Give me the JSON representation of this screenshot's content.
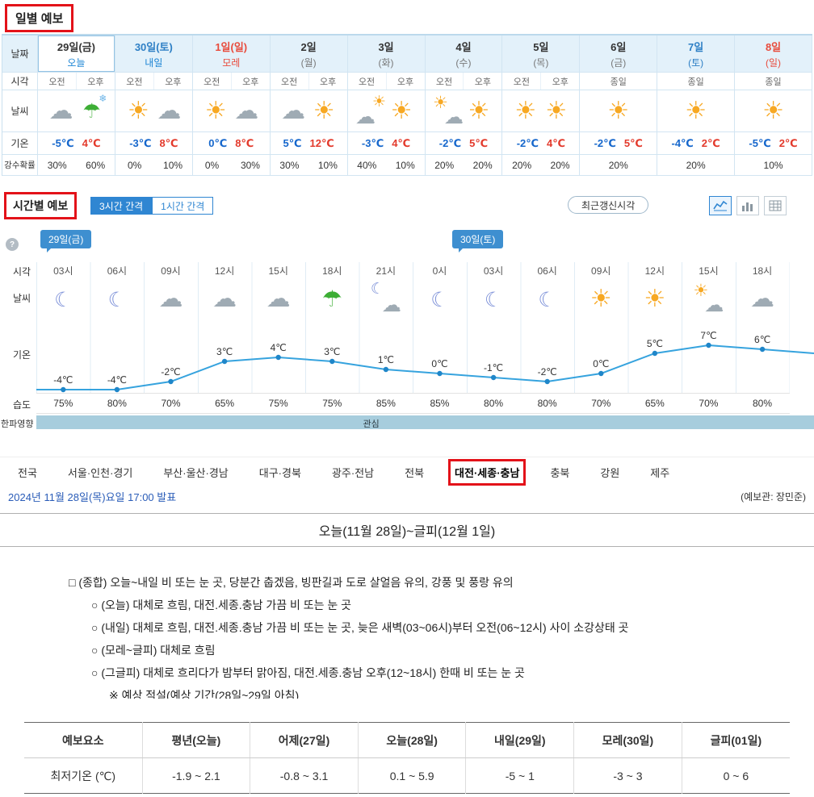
{
  "colors": {
    "annotation_red": "#e31219",
    "accent_blue": "#2f86d2",
    "temp_line_blue": "#36a3de",
    "min_temp_blue": "#1667cc",
    "max_temp_red": "#e33a2c",
    "cold_wave_bar": "#a7cddd"
  },
  "daily": {
    "section_title": "일별 예보",
    "row_labels": [
      "날짜",
      "시각",
      "날씨",
      "기온",
      "강수확률"
    ],
    "am_label": "오전",
    "pm_label": "오후",
    "allday_label": "종일",
    "days": [
      {
        "date": "29일(금)",
        "sub": "오늘",
        "date_style": "weekday",
        "sub_style": "today",
        "selected": true,
        "period": "ampm",
        "icons": [
          "cloud",
          "rain-snow"
        ],
        "temps": [
          "-5℃",
          "4℃"
        ],
        "pops": [
          "30%",
          "60%"
        ]
      },
      {
        "date": "30일(토)",
        "sub": "내일",
        "date_style": "sat",
        "sub_style": "today",
        "selected": false,
        "period": "ampm",
        "icons": [
          "sun",
          "cloud"
        ],
        "temps": [
          "-3℃",
          "8℃"
        ],
        "pops": [
          "0%",
          "10%"
        ]
      },
      {
        "date": "1일(일)",
        "sub": "모레",
        "date_style": "sun",
        "sub_style": "sun",
        "selected": false,
        "period": "ampm",
        "icons": [
          "sun",
          "cloud"
        ],
        "temps": [
          "0℃",
          "8℃"
        ],
        "pops": [
          "0%",
          "30%"
        ]
      },
      {
        "date": "2일",
        "sub": "(월)",
        "date_style": "weekday",
        "sub_style": "gray",
        "selected": false,
        "period": "ampm",
        "icons": [
          "cloud",
          "sun"
        ],
        "temps": [
          "5℃",
          "12℃"
        ],
        "pops": [
          "30%",
          "10%"
        ]
      },
      {
        "date": "3일",
        "sub": "(화)",
        "date_style": "weekday",
        "sub_style": "gray",
        "selected": false,
        "period": "ampm",
        "icons": [
          "cloud-sun",
          "sun"
        ],
        "temps": [
          "-3℃",
          "4℃"
        ],
        "pops": [
          "40%",
          "10%"
        ]
      },
      {
        "date": "4일",
        "sub": "(수)",
        "date_style": "weekday",
        "sub_style": "gray",
        "selected": false,
        "period": "ampm",
        "icons": [
          "sun-cloud",
          "sun"
        ],
        "temps": [
          "-2℃",
          "5℃"
        ],
        "pops": [
          "20%",
          "20%"
        ]
      },
      {
        "date": "5일",
        "sub": "(목)",
        "date_style": "weekday",
        "sub_style": "gray",
        "selected": false,
        "period": "ampm",
        "icons": [
          "sun",
          "sun"
        ],
        "temps": [
          "-2℃",
          "4℃"
        ],
        "pops": [
          "20%",
          "20%"
        ]
      },
      {
        "date": "6일",
        "sub": "(금)",
        "date_style": "weekday",
        "sub_style": "gray",
        "selected": false,
        "period": "allday",
        "icons": [
          "sun"
        ],
        "temps": [
          "-2℃",
          "5℃"
        ],
        "pops": [
          "20%"
        ]
      },
      {
        "date": "7일",
        "sub": "(토)",
        "date_style": "sat",
        "sub_style": "sat",
        "selected": false,
        "period": "allday",
        "icons": [
          "sun"
        ],
        "temps": [
          "-4℃",
          "2℃"
        ],
        "pops": [
          "20%"
        ]
      },
      {
        "date": "8일",
        "sub": "(일)",
        "date_style": "sun",
        "sub_style": "sun",
        "selected": false,
        "period": "allday",
        "icons": [
          "sun"
        ],
        "temps": [
          "-5℃",
          "2℃"
        ],
        "pops": [
          "10%"
        ]
      }
    ]
  },
  "hourly": {
    "section_title": "시간별 예보",
    "interval_buttons": [
      {
        "label": "3시간 간격",
        "active": true
      },
      {
        "label": "1시간 간격",
        "active": false
      }
    ],
    "update_button": "최근갱신시각",
    "view_icons": [
      "line-chart-view-icon",
      "bar-chart-view-icon",
      "table-view-icon"
    ],
    "help_icon": "?",
    "day_badges": [
      {
        "label": "29일(금)"
      },
      {
        "label": "30일(토)"
      }
    ],
    "row_labels": {
      "time": "시각",
      "weather": "날씨",
      "temp": "기온",
      "humidity": "습도",
      "coldwave": "한파영향"
    },
    "cold_wave_label": "관심",
    "hours": [
      {
        "time": "03시",
        "icon": "moon",
        "temp_c": -4,
        "temp_label": "-4℃",
        "humidity": "75%"
      },
      {
        "time": "06시",
        "icon": "moon",
        "temp_c": -4,
        "temp_label": "-4℃",
        "humidity": "80%"
      },
      {
        "time": "09시",
        "icon": "cloud",
        "temp_c": -2,
        "temp_label": "-2℃",
        "humidity": "70%"
      },
      {
        "time": "12시",
        "icon": "cloud",
        "temp_c": 3,
        "temp_label": "3℃",
        "humidity": "65%"
      },
      {
        "time": "15시",
        "icon": "cloud",
        "temp_c": 4,
        "temp_label": "4℃",
        "humidity": "75%"
      },
      {
        "time": "18시",
        "icon": "umbrella",
        "temp_c": 3,
        "temp_label": "3℃",
        "humidity": "75%"
      },
      {
        "time": "21시",
        "icon": "cloud-moon",
        "temp_c": 1,
        "temp_label": "1℃",
        "humidity": "85%"
      },
      {
        "time": "0시",
        "icon": "moon",
        "temp_c": 0,
        "temp_label": "0℃",
        "humidity": "85%"
      },
      {
        "time": "03시",
        "icon": "moon",
        "temp_c": -1,
        "temp_label": "-1℃",
        "humidity": "80%"
      },
      {
        "time": "06시",
        "icon": "moon",
        "temp_c": -2,
        "temp_label": "-2℃",
        "humidity": "80%"
      },
      {
        "time": "09시",
        "icon": "sun",
        "temp_c": 0,
        "temp_label": "0℃",
        "humidity": "70%"
      },
      {
        "time": "12시",
        "icon": "sun",
        "temp_c": 5,
        "temp_label": "5℃",
        "humidity": "65%"
      },
      {
        "time": "15시",
        "icon": "sun-cloud",
        "temp_c": 7,
        "temp_label": "7℃",
        "humidity": "70%"
      },
      {
        "time": "18시",
        "icon": "cloud",
        "temp_c": 6,
        "temp_label": "6℃",
        "humidity": "80%"
      }
    ]
  },
  "regions": {
    "items": [
      "전국",
      "서울·인천·경기",
      "부산·울산·경남",
      "대구·경북",
      "광주·전남",
      "전북",
      "대전·세종·충남",
      "충북",
      "강원",
      "제주"
    ],
    "selected_index": 6
  },
  "announcement": {
    "date_text": "2024년 11월 28일(목)요일 17:00 발표",
    "forecaster": "(예보관: 장민준)"
  },
  "forecast": {
    "title": "오늘(11월 28일)~글피(12월 1일)",
    "lines": [
      {
        "indent": 0,
        "text": "□ (종합) 오늘~내일 비 또는 눈 곳, 당분간 춥겠음, 빙판길과 도로 살얼음 유의, 강풍 및 풍랑 유의"
      },
      {
        "indent": 1,
        "text": "○ (오늘) 대체로 흐림, 대전.세종.충남 가끔 비 또는 눈 곳"
      },
      {
        "indent": 1,
        "text": "○ (내일) 대체로 흐림, 대전.세종.충남 가끔 비 또는 눈 곳, 늦은 새벽(03~06시)부터 오전(06~12시) 사이 소강상태 곳"
      },
      {
        "indent": 1,
        "text": "○ (모레~글피) 대체로 흐림"
      },
      {
        "indent": 1,
        "text": "○ (그글피) 대체로 흐리다가 밤부터 맑아짐, 대전.세종.충남 오후(12~18시) 한때 비 또는 눈 곳"
      },
      {
        "indent": 2,
        "text": "※ 예상 적설(예상 기간(28일~29일 아침)"
      }
    ]
  },
  "summary_table": {
    "headers": [
      "예보요소",
      "평년(오늘)",
      "어제(27일)",
      "오늘(28일)",
      "내일(29일)",
      "모레(30일)",
      "글피(01일)"
    ],
    "rows": [
      [
        "최저기온 (℃)",
        "-1.9 ~ 2.1",
        "-0.8 ~ 3.1",
        "0.1 ~ 5.9",
        "-5 ~ 1",
        "-3 ~ 3",
        "0 ~ 6"
      ]
    ]
  }
}
